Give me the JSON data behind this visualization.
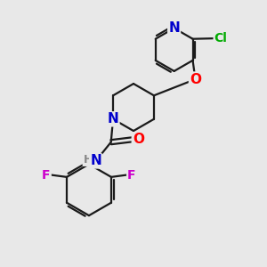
{
  "background_color": "#e8e8e8",
  "atom_colors": {
    "N": "#0000cc",
    "O": "#ff0000",
    "F": "#cc00cc",
    "Cl": "#00aa00",
    "C": "#000000",
    "H": "#888888"
  },
  "bond_color": "#1a1a1a",
  "bond_width": 1.6,
  "font_size_atom": 10
}
